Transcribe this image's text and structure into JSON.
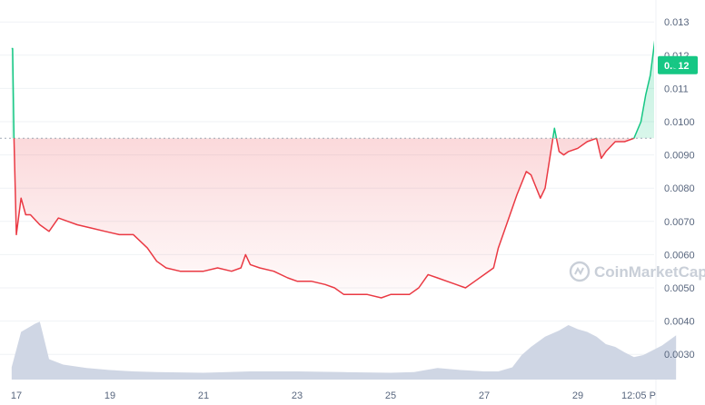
{
  "chart_data": {
    "type": "line",
    "title": "",
    "x_ticks": [
      "17",
      "19",
      "21",
      "23",
      "25",
      "27",
      "29",
      "12:05 P"
    ],
    "y_ticks": [
      "0.013",
      "0.012",
      "0.011",
      "0.0100",
      "0.0090",
      "0.0080",
      "0.0070",
      "0.0060",
      "0.0050",
      "0.0040",
      "0.0030"
    ],
    "ylim": [
      0.0026,
      0.0135
    ],
    "baseline": 0.0095,
    "current_price_label": "0.012",
    "current_price": 0.0117,
    "watermark": "CoinMarketCap",
    "colors": {
      "up": "#16c784",
      "down": "#ea3943",
      "volume": "#cfd6e4",
      "grid": "#eff2f5",
      "axis_text": "#58667e"
    },
    "series": [
      {
        "x": [
          16.9,
          16.92,
          16.95,
          17.0,
          17.1,
          17.2,
          17.3,
          17.5,
          17.7,
          17.9,
          18.1,
          18.3,
          18.6,
          18.9,
          19.2,
          19.5,
          19.8,
          20.0,
          20.2,
          20.5,
          20.8,
          21.0,
          21.3,
          21.6,
          21.8,
          21.9,
          22.0,
          22.2,
          22.5,
          22.8,
          23.0,
          23.3,
          23.6,
          23.8,
          24.0,
          24.2,
          24.5,
          24.8,
          25.0,
          25.2,
          25.4,
          25.6,
          25.8,
          26.0,
          26.2,
          26.4,
          26.6,
          26.8,
          27.0,
          27.2,
          27.3,
          27.5,
          27.7,
          27.9,
          28.0,
          28.2,
          28.3,
          28.5,
          28.6,
          28.7,
          28.8,
          29.0,
          29.2,
          29.4,
          29.5,
          29.6,
          29.8,
          30.0,
          30.2,
          30.35,
          30.45,
          30.55,
          30.65,
          30.75,
          30.85,
          30.95,
          31.1
        ],
        "y": [
          0.0122,
          0.0122,
          0.0095,
          0.0066,
          0.0077,
          0.0072,
          0.0072,
          0.0069,
          0.0067,
          0.0071,
          0.007,
          0.0069,
          0.0068,
          0.0067,
          0.0066,
          0.0066,
          0.0062,
          0.0058,
          0.0056,
          0.0055,
          0.0055,
          0.0055,
          0.0056,
          0.0055,
          0.0056,
          0.006,
          0.0057,
          0.0056,
          0.0055,
          0.0053,
          0.0052,
          0.0052,
          0.0051,
          0.005,
          0.0048,
          0.0048,
          0.0048,
          0.0047,
          0.0048,
          0.0048,
          0.0048,
          0.005,
          0.0054,
          0.0053,
          0.0052,
          0.0051,
          0.005,
          0.0052,
          0.0054,
          0.0056,
          0.0062,
          0.007,
          0.0078,
          0.0085,
          0.0084,
          0.0077,
          0.008,
          0.0098,
          0.0091,
          0.009,
          0.0091,
          0.0092,
          0.0094,
          0.0095,
          0.0089,
          0.0091,
          0.0094,
          0.0094,
          0.0095,
          0.01,
          0.0108,
          0.0114,
          0.0125,
          0.0121,
          0.0122,
          0.0121,
          0.0117
        ]
      }
    ],
    "volume": {
      "x": [
        16.9,
        17.1,
        17.3,
        17.4,
        17.5,
        17.55,
        17.7,
        18.0,
        18.5,
        19.0,
        19.5,
        20.0,
        21.0,
        22.0,
        23.0,
        24.0,
        25.0,
        25.5,
        26.0,
        26.5,
        27.0,
        27.3,
        27.6,
        27.8,
        28.0,
        28.3,
        28.6,
        28.8,
        29.0,
        29.2,
        29.4,
        29.6,
        29.8,
        30.0,
        30.2,
        30.4,
        30.6,
        30.8,
        31.1
      ],
      "values": [
        0.18,
        0.7,
        0.78,
        0.82,
        0.85,
        0.72,
        0.3,
        0.22,
        0.17,
        0.14,
        0.12,
        0.11,
        0.1,
        0.12,
        0.12,
        0.11,
        0.1,
        0.11,
        0.17,
        0.14,
        0.12,
        0.12,
        0.18,
        0.36,
        0.48,
        0.63,
        0.72,
        0.8,
        0.74,
        0.7,
        0.63,
        0.52,
        0.48,
        0.4,
        0.33,
        0.36,
        0.43,
        0.5,
        0.65
      ]
    }
  }
}
